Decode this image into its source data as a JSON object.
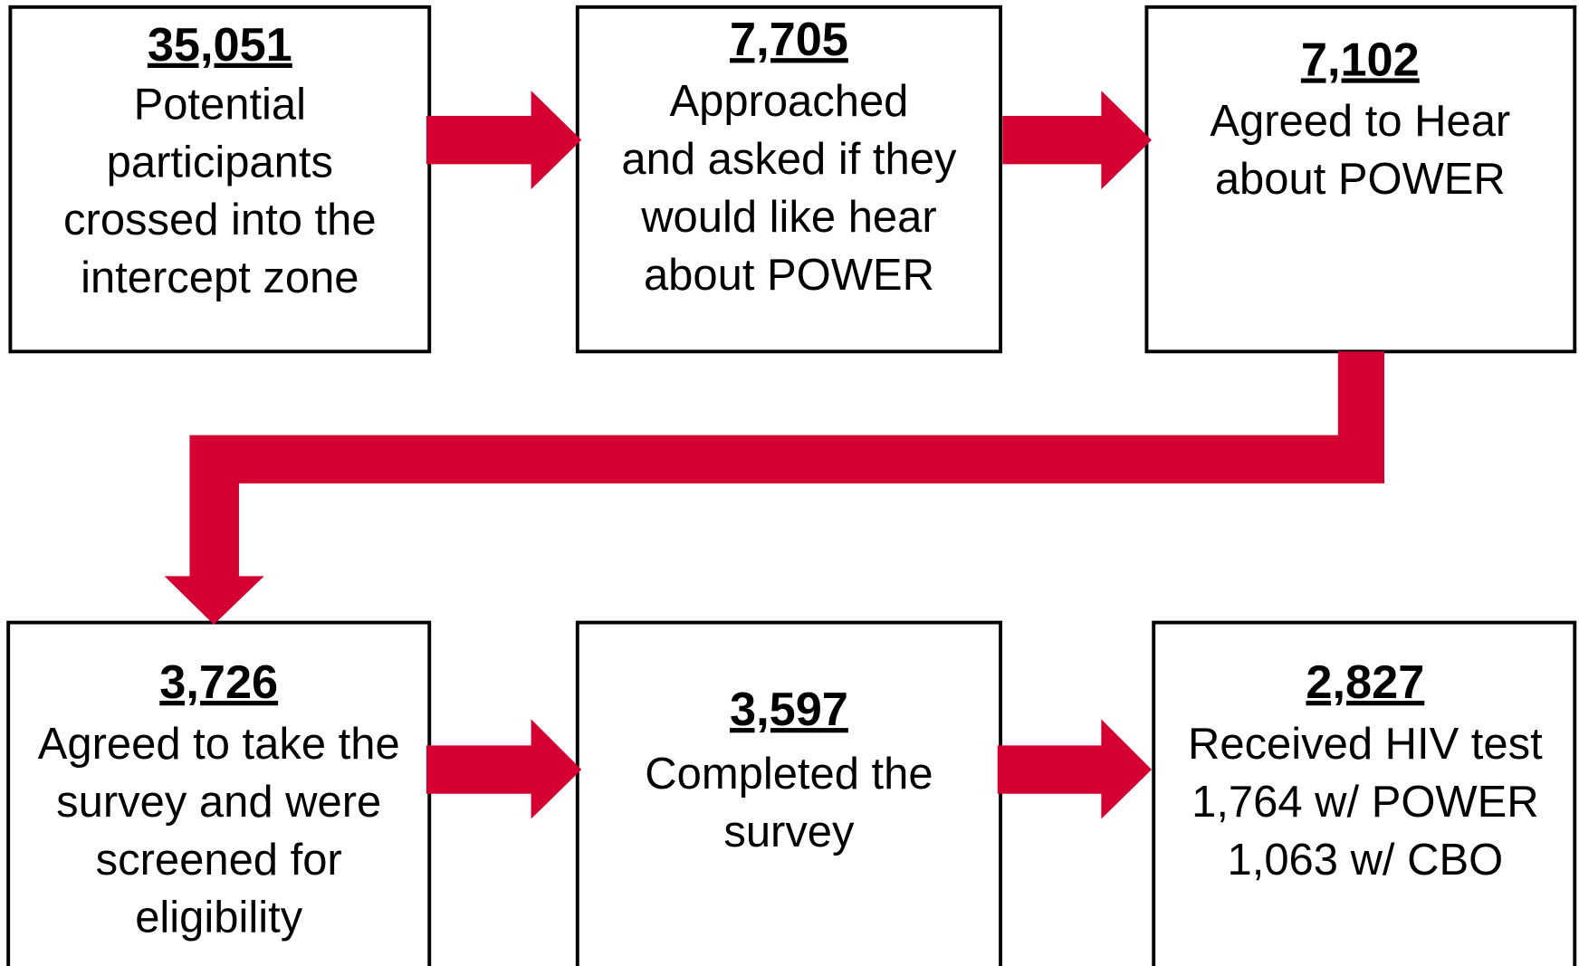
{
  "nodes": [
    {
      "count": "35,051",
      "lines": [
        "Potential",
        "participants",
        "crossed into the",
        "intercept zone"
      ]
    },
    {
      "count": "7,705",
      "lines": [
        "Approached",
        "and asked if they",
        "would like hear",
        "about POWER"
      ]
    },
    {
      "count": "7,102",
      "lines": [
        "Agreed to Hear",
        "about POWER"
      ]
    },
    {
      "count": "3,726",
      "lines": [
        "Agreed to take the",
        "survey and were",
        "screened for",
        "eligibility"
      ]
    },
    {
      "count": "3,597",
      "lines": [
        "Completed the",
        "survey"
      ]
    },
    {
      "count": "2,827",
      "lines": [
        "Received HIV test",
        "1,764 w/ POWER",
        "1,063 w/ CBO"
      ]
    }
  ]
}
